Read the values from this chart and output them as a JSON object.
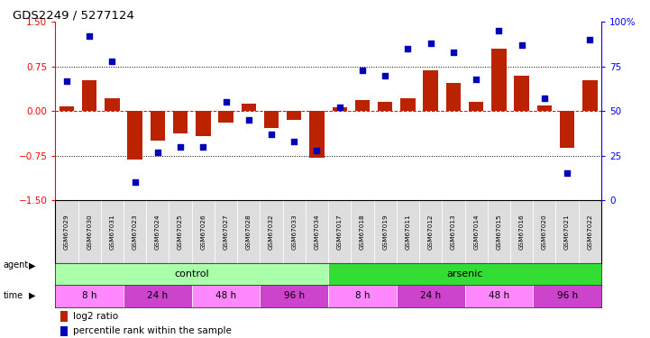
{
  "title": "GDS2249 / 5277124",
  "samples": [
    "GSM67029",
    "GSM67030",
    "GSM67031",
    "GSM67023",
    "GSM67024",
    "GSM67025",
    "GSM67026",
    "GSM67027",
    "GSM67028",
    "GSM67032",
    "GSM67033",
    "GSM67034",
    "GSM67017",
    "GSM67018",
    "GSM67019",
    "GSM67011",
    "GSM67012",
    "GSM67013",
    "GSM67014",
    "GSM67015",
    "GSM67016",
    "GSM67020",
    "GSM67021",
    "GSM67022"
  ],
  "log2_ratio": [
    0.08,
    0.52,
    0.22,
    -0.82,
    -0.5,
    -0.38,
    -0.42,
    -0.2,
    0.12,
    -0.28,
    -0.15,
    -0.78,
    0.06,
    0.18,
    0.16,
    0.22,
    0.68,
    0.48,
    0.16,
    1.05,
    0.6,
    0.1,
    -0.62,
    0.52
  ],
  "percentile_rank": [
    67,
    92,
    78,
    10,
    27,
    30,
    30,
    55,
    45,
    37,
    33,
    28,
    52,
    73,
    70,
    85,
    88,
    83,
    68,
    95,
    87,
    57,
    15,
    90
  ],
  "agent_groups": [
    {
      "label": "control",
      "start": 0,
      "end": 12,
      "color": "#AAFFAA"
    },
    {
      "label": "arsenic",
      "start": 12,
      "end": 24,
      "color": "#33DD33"
    }
  ],
  "time_groups": [
    {
      "label": "8 h",
      "start": 0,
      "end": 3,
      "color": "#FF88FF"
    },
    {
      "label": "24 h",
      "start": 3,
      "end": 6,
      "color": "#CC44CC"
    },
    {
      "label": "48 h",
      "start": 6,
      "end": 9,
      "color": "#FF88FF"
    },
    {
      "label": "96 h",
      "start": 9,
      "end": 12,
      "color": "#CC44CC"
    },
    {
      "label": "8 h",
      "start": 12,
      "end": 15,
      "color": "#FF88FF"
    },
    {
      "label": "24 h",
      "start": 15,
      "end": 18,
      "color": "#CC44CC"
    },
    {
      "label": "48 h",
      "start": 18,
      "end": 21,
      "color": "#FF88FF"
    },
    {
      "label": "96 h",
      "start": 21,
      "end": 24,
      "color": "#CC44CC"
    }
  ],
  "bar_color": "#BB2200",
  "dot_color": "#0000BB",
  "ylim_left": [
    -1.5,
    1.5
  ],
  "ylim_right": [
    0,
    100
  ],
  "yticks_left": [
    -1.5,
    -0.75,
    0,
    0.75,
    1.5
  ],
  "yticks_right": [
    0,
    25,
    50,
    75,
    100
  ],
  "bar_width": 0.65,
  "dot_size": 22,
  "legend_red_label": "log2 ratio",
  "legend_blue_label": "percentile rank within the sample"
}
